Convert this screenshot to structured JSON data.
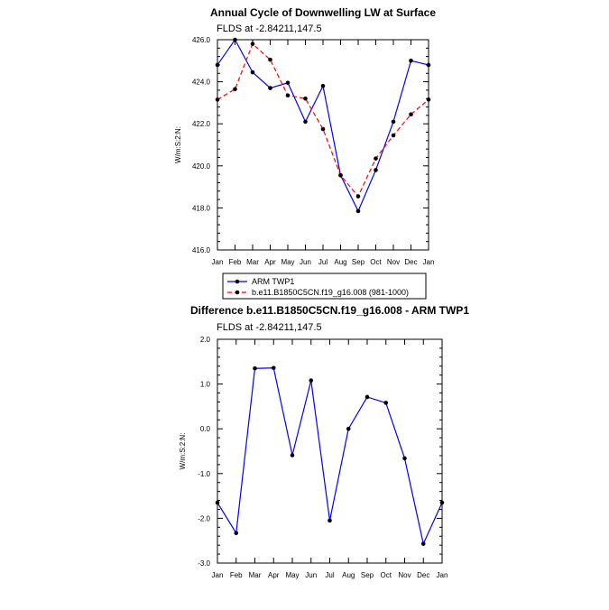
{
  "chart_data": [
    {
      "type": "line",
      "title": "Annual Cycle of Downwelling LW at Surface",
      "subtitle": "FLDS at -2.84211,147.5",
      "ylabel": "W/m:S:2:N:",
      "xlabel": "",
      "categories": [
        "Jan",
        "Feb",
        "Mar",
        "Apr",
        "May",
        "Jun",
        "Jul",
        "Aug",
        "Sep",
        "Oct",
        "Nov",
        "Dec",
        "Jan"
      ],
      "ylim": [
        416.0,
        426.0
      ],
      "yticks": [
        "416.0",
        "418.0",
        "420.0",
        "422.0",
        "424.0",
        "426.0"
      ],
      "series": [
        {
          "name": "ARM TWP1",
          "color": "#0000ff",
          "dash": "solid",
          "values": [
            424.8,
            426.0,
            424.45,
            423.7,
            423.95,
            422.1,
            423.8,
            419.55,
            417.85,
            419.8,
            422.1,
            425.0,
            424.8
          ]
        },
        {
          "name": "b.e11.B1850C5CN.f19_g16.008 (981-1000)",
          "color": "#ff0000",
          "dash": "dashed",
          "values": [
            423.15,
            423.65,
            425.8,
            425.05,
            423.35,
            423.2,
            421.75,
            419.55,
            418.55,
            420.35,
            421.45,
            422.45,
            423.15
          ]
        }
      ],
      "legend": "bottom-left"
    },
    {
      "type": "line",
      "title": "Difference b.e11.B1850C5CN.f19_g16.008 - ARM TWP1",
      "subtitle": "FLDS at -2.84211,147.5",
      "ylabel": "W/m:S:2:N:",
      "xlabel": "",
      "categories": [
        "Jan",
        "Feb",
        "Mar",
        "Apr",
        "May",
        "Jun",
        "Jul",
        "Aug",
        "Sep",
        "Oct",
        "Nov",
        "Dec",
        "Jan"
      ],
      "ylim": [
        -3.0,
        2.0
      ],
      "yticks": [
        "-3.0",
        "-2.0",
        "-1.0",
        "0.0",
        "1.0",
        "2.0"
      ],
      "series": [
        {
          "name": "",
          "color": "#0000ff",
          "dash": "solid",
          "values": [
            -1.65,
            -2.33,
            1.35,
            1.36,
            -0.59,
            1.08,
            -2.05,
            0.0,
            0.71,
            0.58,
            -0.66,
            -2.57,
            -1.65
          ]
        }
      ]
    }
  ]
}
